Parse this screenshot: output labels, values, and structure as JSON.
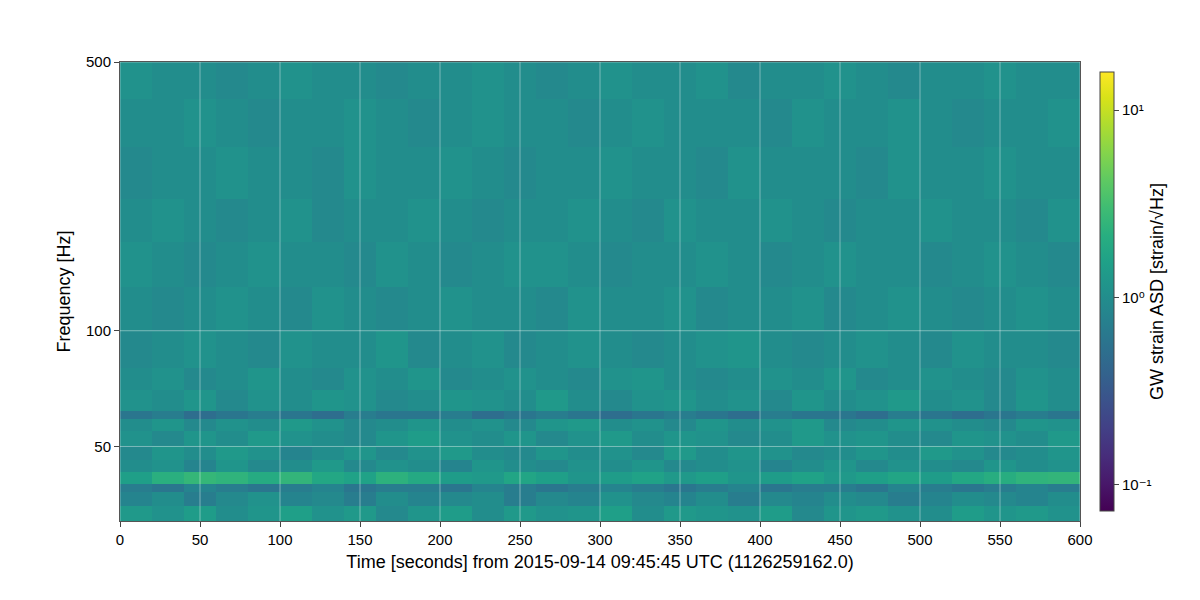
{
  "chart_data": {
    "type": "heatmap",
    "x_label": "Time [seconds] from 2015-09-14 09:45:45 UTC (1126259162.0)",
    "y_label": "Frequency [Hz]",
    "xlim": [
      0,
      600
    ],
    "xticks": [
      0,
      50,
      100,
      150,
      200,
      250,
      300,
      350,
      400,
      450,
      500,
      550,
      600
    ],
    "ylim": [
      32,
      500
    ],
    "yticks": [
      50,
      100,
      500
    ],
    "log": "y",
    "grid": true,
    "color": "viridis",
    "cells": {
      "x_bins": [
        0,
        20,
        40,
        60,
        80,
        100,
        120,
        140,
        160,
        180,
        200,
        220,
        240,
        260,
        280,
        300,
        320,
        340,
        360,
        380,
        400,
        420,
        440,
        460,
        480,
        500,
        520,
        540,
        560,
        580,
        600
      ],
      "y_bins": [
        32,
        35,
        38,
        40,
        43,
        46,
        50,
        55,
        59,
        62,
        70,
        80,
        100,
        130,
        170,
        220,
        300,
        400,
        500
      ],
      "values": [
        [
          1.3,
          1.1,
          1.4,
          1.0,
          1.2,
          1.5,
          1.1,
          1.3,
          0.9,
          1.2,
          1.4,
          1.0,
          1.3,
          1.1,
          1.2,
          1.5,
          1.0,
          1.3,
          1.2,
          1.1,
          1.4,
          0.9,
          1.2,
          1.3,
          1.1,
          1.0,
          1.4,
          1.2,
          1.3,
          1.1
        ],
        [
          0.8,
          1.0,
          0.7,
          0.9,
          1.1,
          0.8,
          0.9,
          0.7,
          1.0,
          0.8,
          0.9,
          1.0,
          0.7,
          0.9,
          0.8,
          1.1,
          0.9,
          0.8,
          1.0,
          0.7,
          0.9,
          0.8,
          1.0,
          0.9,
          0.7,
          0.8,
          1.0,
          0.9,
          0.8,
          1.0
        ],
        [
          0.7,
          0.6,
          0.8,
          0.7,
          0.6,
          0.7,
          0.8,
          0.6,
          0.7,
          0.7,
          0.6,
          0.8,
          0.7,
          0.6,
          0.7,
          0.8,
          0.7,
          0.6,
          0.7,
          0.8,
          0.6,
          0.7,
          0.7,
          0.6,
          0.8,
          0.7,
          0.6,
          0.7,
          0.8,
          0.7
        ],
        [
          1.5,
          2.2,
          2.6,
          2.4,
          2.0,
          2.5,
          1.8,
          1.6,
          2.3,
          1.9,
          1.4,
          1.3,
          1.7,
          1.5,
          1.2,
          1.4,
          1.6,
          1.3,
          1.5,
          1.2,
          1.4,
          1.6,
          1.3,
          1.5,
          1.7,
          1.4,
          1.8,
          2.1,
          2.4,
          2.5
        ],
        [
          1.0,
          1.1,
          0.8,
          1.2,
          0.9,
          1.0,
          1.3,
          0.9,
          1.1,
          1.0,
          0.8,
          1.2,
          1.0,
          0.9,
          1.1,
          1.0,
          1.2,
          0.9,
          1.0,
          1.1,
          0.8,
          1.0,
          1.2,
          0.9,
          1.1,
          1.0,
          0.9,
          1.2,
          1.0,
          1.1
        ],
        [
          0.9,
          1.2,
          1.0,
          1.3,
          1.1,
          0.8,
          1.0,
          1.2,
          0.9,
          1.1,
          1.3,
          1.0,
          0.9,
          1.2,
          1.0,
          1.1,
          0.9,
          1.3,
          1.0,
          1.2,
          1.1,
          0.9,
          1.0,
          1.2,
          1.0,
          1.3,
          1.1,
          0.9,
          1.0,
          1.2
        ],
        [
          1.1,
          0.9,
          1.2,
          1.0,
          1.3,
          1.1,
          1.0,
          0.9,
          1.2,
          1.4,
          1.1,
          1.0,
          1.2,
          0.9,
          1.1,
          1.3,
          1.0,
          1.2,
          1.1,
          0.9,
          1.0,
          1.3,
          1.1,
          1.2,
          1.0,
          0.9,
          1.2,
          1.1,
          1.0,
          1.3
        ],
        [
          1.0,
          1.2,
          0.9,
          1.1,
          1.0,
          1.3,
          1.1,
          0.9,
          1.0,
          1.2,
          1.0,
          1.1,
          0.9,
          1.2,
          1.3,
          1.0,
          1.1,
          0.9,
          1.2,
          1.0,
          1.1,
          1.3,
          0.9,
          1.0,
          1.2,
          1.1,
          1.0,
          0.9,
          1.2,
          1.1
        ],
        [
          0.6,
          0.7,
          0.5,
          0.6,
          0.7,
          0.6,
          0.5,
          0.7,
          0.6,
          0.6,
          0.7,
          0.5,
          0.6,
          0.7,
          0.6,
          0.5,
          0.6,
          0.7,
          0.6,
          0.5,
          0.7,
          0.6,
          0.6,
          0.5,
          0.7,
          0.6,
          0.5,
          0.6,
          0.7,
          0.6
        ],
        [
          1.1,
          1.0,
          1.2,
          0.9,
          1.1,
          1.0,
          1.2,
          1.1,
          0.9,
          1.0,
          1.2,
          1.1,
          1.0,
          1.3,
          1.0,
          0.9,
          1.1,
          1.2,
          1.0,
          1.1,
          0.9,
          1.2,
          1.0,
          1.1,
          1.3,
          1.0,
          1.1,
          0.9,
          1.2,
          1.0
        ],
        [
          1.0,
          1.1,
          0.9,
          1.0,
          1.2,
          1.0,
          0.9,
          1.1,
          1.0,
          1.2,
          0.9,
          1.0,
          1.1,
          1.0,
          0.9,
          1.1,
          1.2,
          1.0,
          0.9,
          1.0,
          1.1,
          1.0,
          1.2,
          0.9,
          1.0,
          1.1,
          1.0,
          0.9,
          1.1,
          1.0
        ],
        [
          0.9,
          1.0,
          1.1,
          1.0,
          0.9,
          1.1,
          1.0,
          1.0,
          1.2,
          0.9,
          1.0,
          1.1,
          0.9,
          1.0,
          1.1,
          1.0,
          0.9,
          1.0,
          1.1,
          1.2,
          1.0,
          0.9,
          1.0,
          1.1,
          1.0,
          0.9,
          1.1,
          1.0,
          1.0,
          0.9
        ],
        [
          1.0,
          0.9,
          1.0,
          1.1,
          1.0,
          0.9,
          1.1,
          1.0,
          0.9,
          1.0,
          1.1,
          1.0,
          1.0,
          0.9,
          1.1,
          1.0,
          1.0,
          1.1,
          0.9,
          1.0,
          1.0,
          1.1,
          0.9,
          1.0,
          1.1,
          1.0,
          0.9,
          1.0,
          1.1,
          1.0
        ],
        [
          1.1,
          1.0,
          0.9,
          1.0,
          1.1,
          1.0,
          1.0,
          0.9,
          1.1,
          1.0,
          0.9,
          1.0,
          1.1,
          1.1,
          1.0,
          0.9,
          1.0,
          1.0,
          1.1,
          1.0,
          0.9,
          1.0,
          1.1,
          1.0,
          1.0,
          0.9,
          1.0,
          1.1,
          1.0,
          0.9
        ],
        [
          1.0,
          1.1,
          1.0,
          0.9,
          1.0,
          1.1,
          0.9,
          1.0,
          1.0,
          1.1,
          1.0,
          0.9,
          1.0,
          1.0,
          1.1,
          1.0,
          0.9,
          1.1,
          1.0,
          1.0,
          1.1,
          1.0,
          0.9,
          1.0,
          1.0,
          1.1,
          1.0,
          1.0,
          0.9,
          1.1
        ],
        [
          0.9,
          1.0,
          1.0,
          1.1,
          1.0,
          1.0,
          0.9,
          1.1,
          1.0,
          1.0,
          1.1,
          1.0,
          0.9,
          1.0,
          1.0,
          1.1,
          1.0,
          1.0,
          0.9,
          1.1,
          1.0,
          1.0,
          1.0,
          0.9,
          1.1,
          1.0,
          1.0,
          1.1,
          1.0,
          1.0
        ],
        [
          1.0,
          1.0,
          1.1,
          1.0,
          0.9,
          1.0,
          1.0,
          1.1,
          1.0,
          0.9,
          1.0,
          1.1,
          1.0,
          1.0,
          0.9,
          1.0,
          1.1,
          1.0,
          1.0,
          1.0,
          0.9,
          1.1,
          1.0,
          1.0,
          1.1,
          1.0,
          0.9,
          1.0,
          1.0,
          1.1
        ],
        [
          1.1,
          1.0,
          1.0,
          0.9,
          1.0,
          1.1,
          1.0,
          1.0,
          0.9,
          1.0,
          1.0,
          1.1,
          1.0,
          0.9,
          1.0,
          1.1,
          1.0,
          1.0,
          1.1,
          0.9,
          1.0,
          1.0,
          1.1,
          1.0,
          0.9,
          1.0,
          1.0,
          1.1,
          1.0,
          1.0
        ]
      ]
    },
    "colorbar": {
      "label": "GW strain ASD [strain/√Hz]",
      "range": [
        0.072,
        16
      ],
      "ticks": [
        {
          "value": 0.1,
          "label": "10⁻¹"
        },
        {
          "value": 1,
          "label": "10⁰"
        },
        {
          "value": 10,
          "label": "10¹"
        }
      ]
    }
  }
}
